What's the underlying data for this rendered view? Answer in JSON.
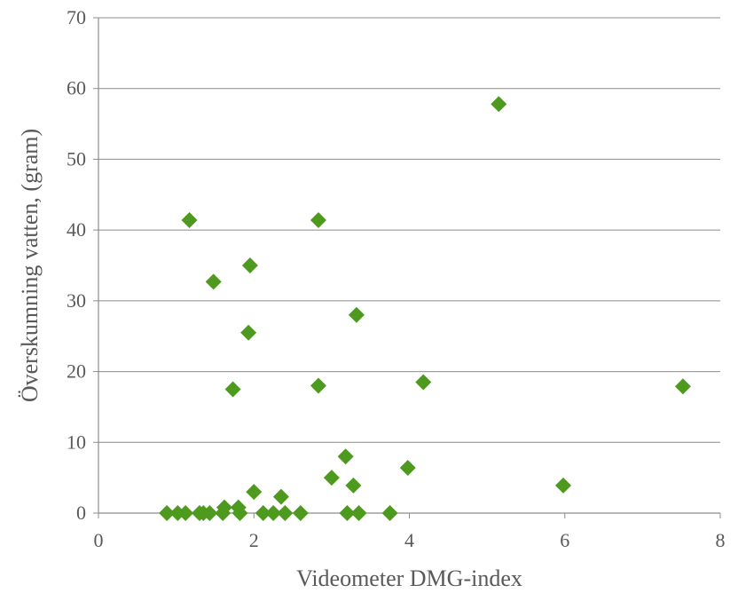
{
  "chart_data": {
    "type": "scatter",
    "title": "",
    "xlabel": "Videometer DMG-index",
    "ylabel": "Överskumning vatten, (gram)",
    "xlim": [
      0,
      8
    ],
    "ylim": [
      0,
      70
    ],
    "xticks": [
      "0",
      "2",
      "4",
      "6",
      "8"
    ],
    "yticks": [
      "0",
      "10",
      "20",
      "30",
      "40",
      "50",
      "60",
      "70"
    ],
    "grid": "horizontal",
    "legend": "none",
    "marker": "diamond",
    "color": "#4E9A1E",
    "series": [
      {
        "points": [
          [
            0.88,
            0
          ],
          [
            1.02,
            0
          ],
          [
            1.12,
            0
          ],
          [
            1.3,
            0
          ],
          [
            1.35,
            0
          ],
          [
            1.43,
            0
          ],
          [
            1.6,
            0
          ],
          [
            1.82,
            0
          ],
          [
            2.12,
            0
          ],
          [
            2.25,
            0
          ],
          [
            2.4,
            0
          ],
          [
            2.6,
            0
          ],
          [
            3.2,
            0
          ],
          [
            3.35,
            0
          ],
          [
            3.75,
            0
          ],
          [
            1.62,
            0.8
          ],
          [
            1.8,
            0.8
          ],
          [
            2.0,
            3.0
          ],
          [
            2.35,
            2.3
          ],
          [
            3.0,
            5.0
          ],
          [
            3.28,
            3.9
          ],
          [
            3.18,
            8.0
          ],
          [
            3.98,
            6.4
          ],
          [
            5.98,
            3.9
          ],
          [
            1.17,
            41.4
          ],
          [
            1.48,
            32.7
          ],
          [
            1.73,
            17.5
          ],
          [
            1.93,
            25.5
          ],
          [
            1.95,
            35.0
          ],
          [
            2.83,
            41.4
          ],
          [
            2.83,
            18.0
          ],
          [
            3.32,
            28.0
          ],
          [
            4.18,
            18.5
          ],
          [
            5.15,
            57.8
          ],
          [
            7.52,
            17.9
          ]
        ]
      }
    ]
  }
}
